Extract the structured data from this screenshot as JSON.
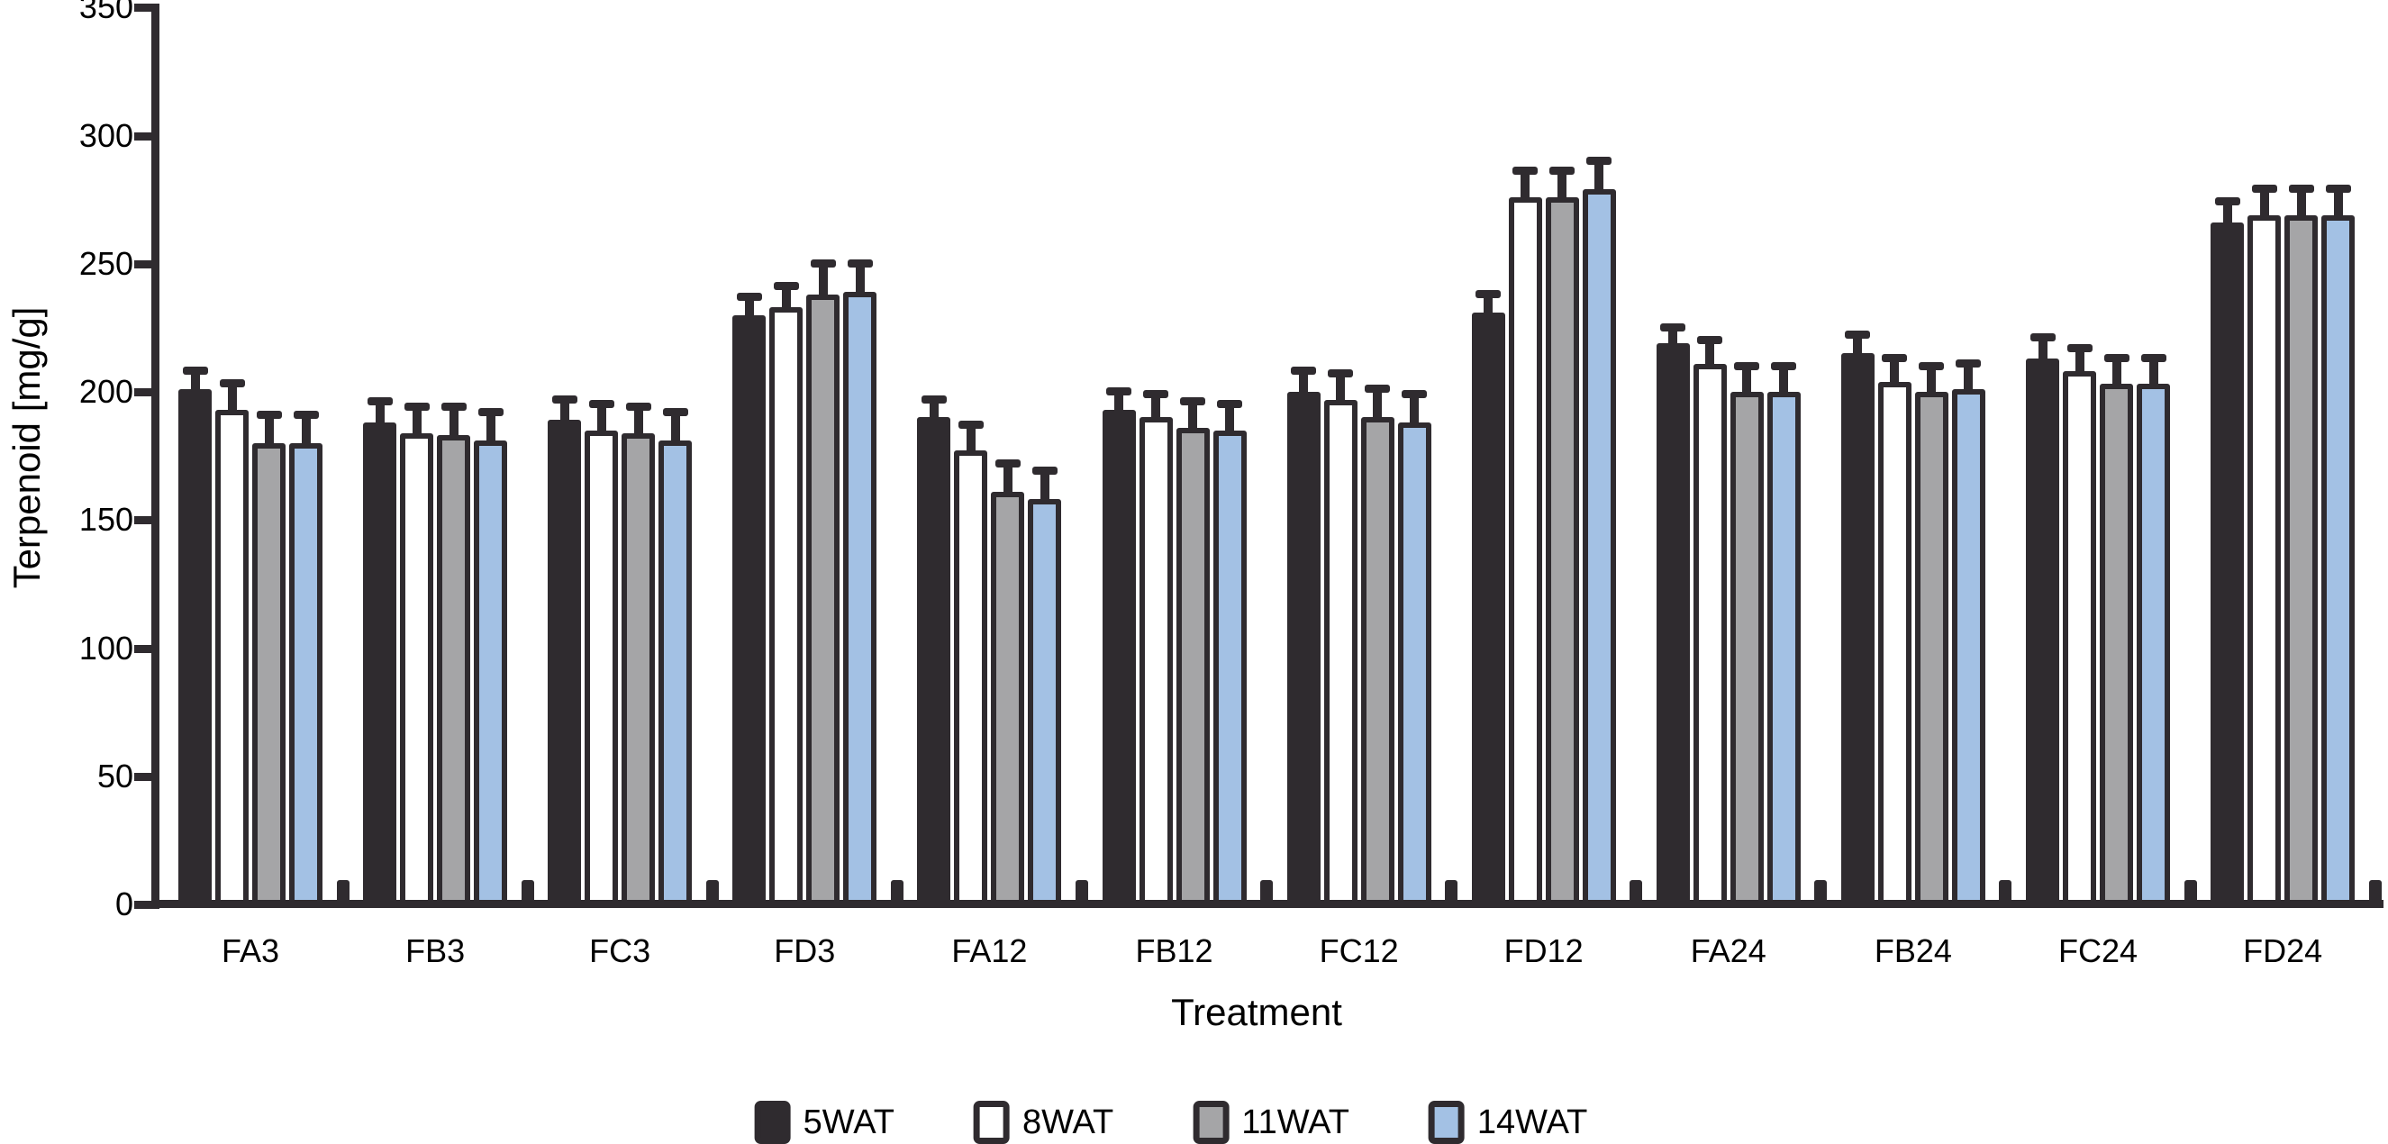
{
  "chart_data": {
    "type": "bar",
    "title": "",
    "xlabel": "Treatment",
    "ylabel": "Terpenoid [mg/g]",
    "ylim": [
      0,
      350
    ],
    "yticks": [
      0,
      50,
      100,
      150,
      200,
      250,
      300,
      350
    ],
    "grid": false,
    "legend_position": "bottom",
    "error_bars": "upper",
    "outline_color": "#2f2b2f",
    "categories": [
      "FA3",
      "FB3",
      "FC3",
      "FD3",
      "FA12",
      "FB12",
      "FC12",
      "FD12",
      "FA24",
      "FB24",
      "FC24",
      "FD24"
    ],
    "series": [
      {
        "name": "5WAT",
        "fill": "#2f2b2f",
        "values": [
          201,
          188,
          189,
          230,
          190,
          193,
          200,
          231,
          219,
          215,
          213,
          266
        ],
        "errors": [
          7,
          8,
          8,
          7,
          7,
          7,
          8,
          7,
          6,
          7,
          8,
          8
        ]
      },
      {
        "name": "8WAT",
        "fill": "#ffffff",
        "values": [
          193,
          184,
          185,
          233,
          177,
          190,
          197,
          276,
          211,
          204,
          208,
          269
        ],
        "errors": [
          10,
          10,
          10,
          8,
          10,
          9,
          10,
          10,
          9,
          9,
          9,
          10
        ]
      },
      {
        "name": "11WAT",
        "fill": "#a5a5a7",
        "values": [
          180,
          183,
          184,
          238,
          161,
          186,
          190,
          276,
          200,
          200,
          203,
          269
        ],
        "errors": [
          11,
          11,
          10,
          12,
          11,
          10,
          11,
          10,
          10,
          10,
          10,
          10
        ]
      },
      {
        "name": "14WAT",
        "fill": "#a3c1e4",
        "values": [
          180,
          181,
          181,
          239,
          158,
          185,
          188,
          279,
          200,
          201,
          203,
          269
        ],
        "errors": [
          11,
          11,
          11,
          11,
          11,
          10,
          11,
          11,
          10,
          10,
          10,
          10
        ]
      }
    ]
  }
}
